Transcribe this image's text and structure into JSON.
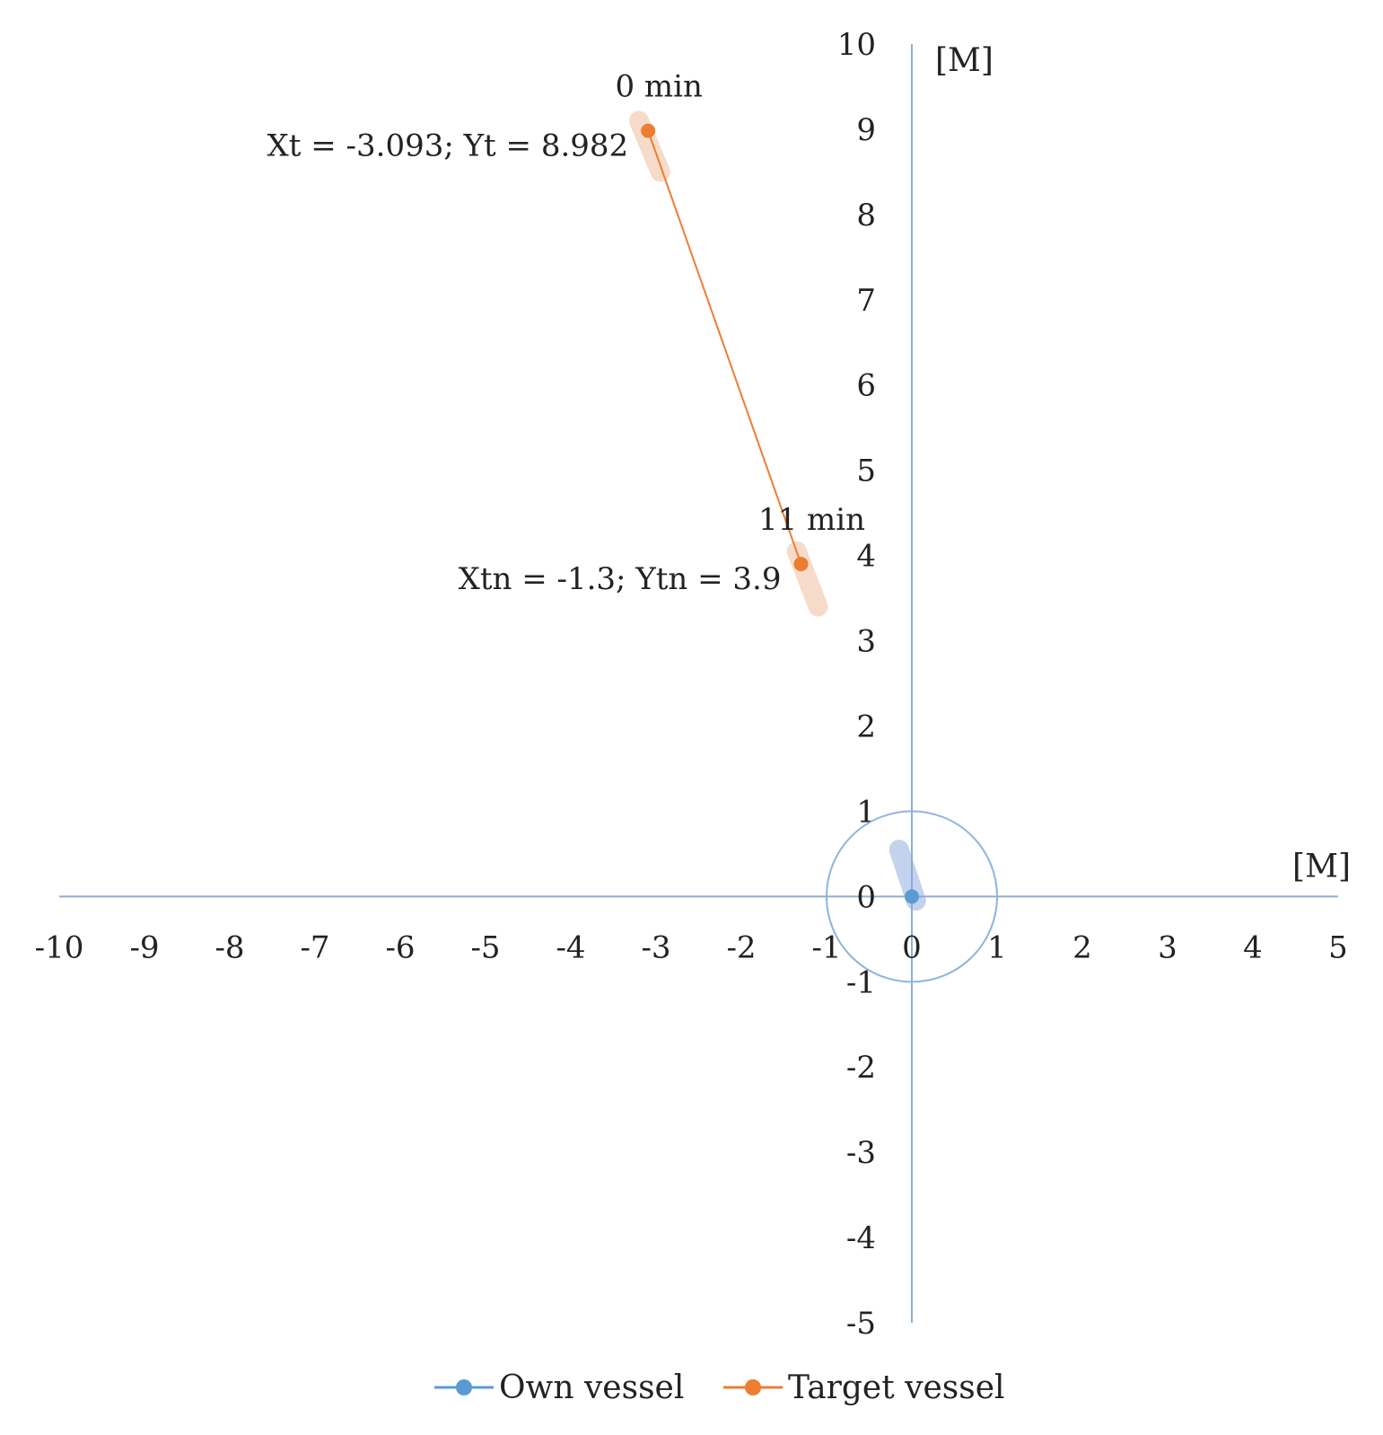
{
  "chart_data": {
    "type": "scatter",
    "x_unit_label": "[M]",
    "y_unit_label": "[M]",
    "xlim": [
      -10,
      5
    ],
    "ylim": [
      -5,
      10
    ],
    "x_ticks": [
      -10,
      -9,
      -8,
      -7,
      -6,
      -5,
      -4,
      -3,
      -2,
      -1,
      0,
      1,
      2,
      3,
      4,
      5
    ],
    "y_ticks": [
      -5,
      -4,
      -3,
      -2,
      -1,
      0,
      1,
      2,
      3,
      4,
      5,
      6,
      7,
      8,
      9,
      10
    ],
    "grid": false,
    "legend_position": "bottom",
    "series": [
      {
        "name": "Own vessel",
        "color": "#5b9bd5",
        "points": [
          [
            0,
            0
          ]
        ],
        "ship_icon": {
          "from": [
            -0.15,
            0.55
          ],
          "to": [
            0.05,
            -0.05
          ]
        },
        "domain_circle_radius": 1
      },
      {
        "name": "Target vessel",
        "color": "#ed7d31",
        "points": [
          [
            -3.093,
            8.982
          ],
          [
            -1.3,
            3.9
          ]
        ],
        "ship_icons": [
          {
            "from": [
              -3.2,
              9.1
            ],
            "to": [
              -2.95,
              8.5
            ]
          },
          {
            "from": [
              -1.35,
              4.05
            ],
            "to": [
              -1.1,
              3.4
            ]
          }
        ]
      }
    ],
    "annotations": [
      {
        "text": "0 min",
        "x": -3.093,
        "y": 8.982,
        "placement": "above"
      },
      {
        "text": "Xt = -3.093; Yt = 8.982",
        "x": -3.093,
        "y": 8.982,
        "placement": "left"
      },
      {
        "text": "11 min",
        "x": -1.3,
        "y": 3.9,
        "placement": "above"
      },
      {
        "text": "Xtn = -1.3; Ytn =  3.9",
        "x": -1.3,
        "y": 3.9,
        "placement": "left"
      }
    ]
  }
}
